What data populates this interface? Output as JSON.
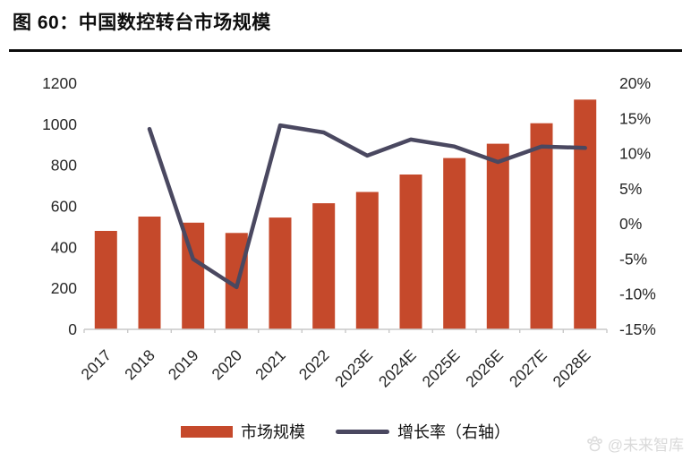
{
  "page": {
    "watermark": "@未来智库"
  },
  "chart_data": {
    "type": "bar",
    "title": "图 60：中国数控转台市场规模",
    "categories": [
      "2017",
      "2018",
      "2019",
      "2020",
      "2021",
      "2022",
      "2023E",
      "2024E",
      "2025E",
      "2026E",
      "2027E",
      "2028E"
    ],
    "series": [
      {
        "name": "市场规模",
        "type": "bar",
        "axis": "left",
        "color": "#C5492B",
        "values": [
          480,
          550,
          520,
          470,
          545,
          615,
          670,
          755,
          835,
          905,
          1005,
          1120
        ]
      },
      {
        "name": "增长率（右轴）",
        "type": "line",
        "axis": "right",
        "color": "#4A4860",
        "values": [
          null,
          13.5,
          -5,
          -9,
          14,
          13,
          9.7,
          12,
          11,
          8.8,
          11,
          10.8
        ]
      }
    ],
    "left_axis": {
      "min": 0,
      "max": 1200,
      "step": 200,
      "ticks": [
        "0",
        "200",
        "400",
        "600",
        "800",
        "1000",
        "1200"
      ]
    },
    "right_axis": {
      "min": -15,
      "max": 20,
      "step": 5,
      "ticks": [
        "-15%",
        "-10%",
        "-5%",
        "0%",
        "5%",
        "10%",
        "15%",
        "20%"
      ]
    },
    "grid": false,
    "legend_position": "bottom",
    "axis_line_color": "#c9c9c9",
    "label_color": "#262626"
  }
}
